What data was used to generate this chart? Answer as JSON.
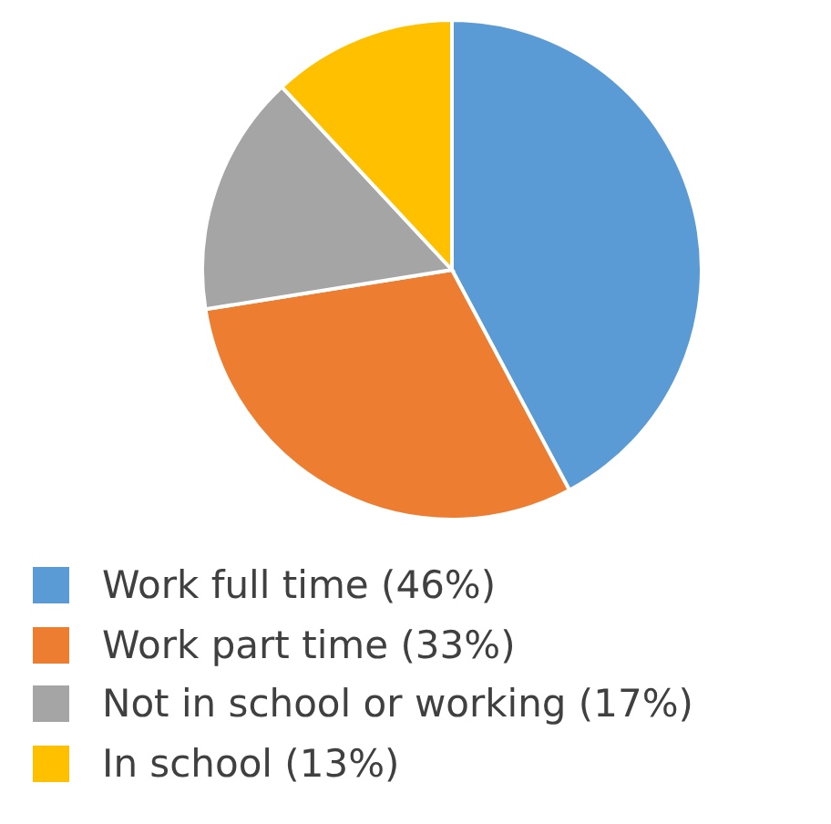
{
  "chart_data": {
    "type": "pie",
    "categories": [
      "Work full time (46%)",
      "Work part time (33%)",
      "Not in school or working (17%)",
      "In school (13%)"
    ],
    "values": [
      46,
      33,
      17,
      13
    ],
    "colors": [
      "#5b9bd5",
      "#ed7d31",
      "#a5a5a5",
      "#ffc000"
    ],
    "legend": "bottom"
  }
}
